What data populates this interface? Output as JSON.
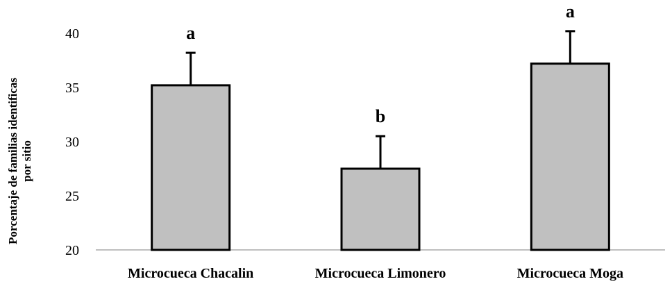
{
  "chart_data": {
    "type": "bar",
    "categories": [
      "Microcueca Chacalin",
      "Microcueca Limonero",
      "Microcueca Moga"
    ],
    "values": [
      35.2,
      27.5,
      37.2
    ],
    "error_plus": [
      3.0,
      3.0,
      3.0
    ],
    "significance": [
      "a",
      "b",
      "a"
    ],
    "ylabel_lines": [
      "Porcentaje de familias identificas",
      "por sitio"
    ],
    "ylim": [
      20,
      40
    ],
    "yticks": [
      "20",
      "25",
      "30",
      "35",
      "40"
    ],
    "grid": false,
    "bar_color": "#c0c0c0",
    "bar_edge_color": "#000000"
  }
}
